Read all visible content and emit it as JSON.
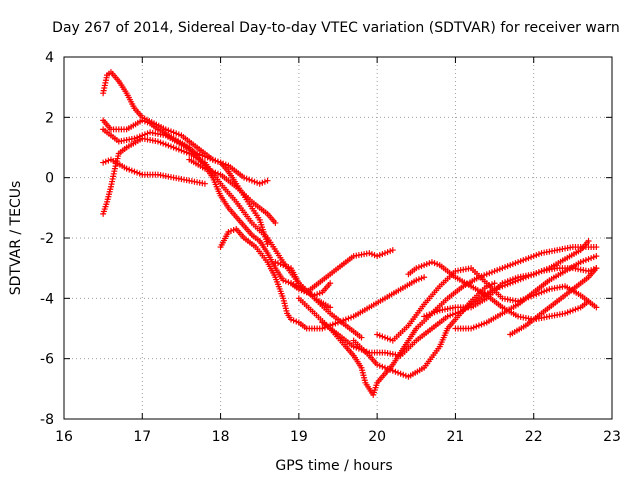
{
  "chart_data": {
    "type": "scatter",
    "title": "Day 267 of 2014, Sidereal Day-to-day VTEC variation (SDTVAR) for receiver warn",
    "xlabel": "GPS time / hours",
    "ylabel": "SDTVAR / TECUs",
    "xlim": [
      16,
      23
    ],
    "ylim": [
      -8,
      4
    ],
    "xticks": [
      16,
      17,
      18,
      19,
      20,
      21,
      22,
      23
    ],
    "yticks": [
      -8,
      -6,
      -4,
      -2,
      0,
      2,
      4
    ],
    "grid": true,
    "marker": "+",
    "color": "#ff0000",
    "series": [
      {
        "name": "trace-1",
        "points": [
          [
            16.5,
            2.8
          ],
          [
            16.55,
            3.4
          ],
          [
            16.6,
            3.5
          ],
          [
            16.7,
            3.2
          ],
          [
            16.8,
            2.8
          ],
          [
            16.9,
            2.3
          ],
          [
            17.0,
            2.0
          ],
          [
            17.15,
            1.8
          ],
          [
            17.3,
            1.6
          ],
          [
            17.5,
            1.4
          ],
          [
            17.7,
            1.0
          ],
          [
            17.9,
            0.6
          ],
          [
            18.0,
            0.5
          ],
          [
            18.1,
            0.2
          ],
          [
            18.2,
            -0.2
          ],
          [
            18.35,
            -0.8
          ],
          [
            18.5,
            -1.4
          ],
          [
            18.6,
            -2.2
          ]
        ]
      },
      {
        "name": "trace-2",
        "points": [
          [
            16.5,
            1.9
          ],
          [
            16.6,
            1.6
          ],
          [
            16.8,
            1.6
          ],
          [
            17.0,
            1.9
          ],
          [
            17.1,
            1.8
          ],
          [
            17.2,
            1.6
          ],
          [
            17.4,
            1.3
          ],
          [
            17.6,
            1.0
          ],
          [
            17.8,
            0.4
          ],
          [
            17.9,
            0.0
          ],
          [
            18.0,
            -0.6
          ],
          [
            18.1,
            -1.0
          ],
          [
            18.2,
            -1.3
          ],
          [
            18.3,
            -1.6
          ],
          [
            18.4,
            -1.9
          ],
          [
            18.5,
            -2.1
          ],
          [
            18.6,
            -2.5
          ],
          [
            18.7,
            -3.0
          ],
          [
            18.8,
            -3.4
          ],
          [
            18.9,
            -3.5
          ],
          [
            19.0,
            -3.6
          ],
          [
            19.1,
            -3.8
          ],
          [
            19.2,
            -3.9
          ],
          [
            19.3,
            -3.8
          ],
          [
            19.4,
            -3.5
          ]
        ]
      },
      {
        "name": "trace-3",
        "points": [
          [
            16.5,
            0.5
          ],
          [
            16.6,
            0.6
          ],
          [
            16.8,
            0.3
          ],
          [
            17.0,
            0.1
          ],
          [
            17.2,
            0.1
          ],
          [
            17.4,
            0.0
          ],
          [
            17.6,
            -0.1
          ],
          [
            17.8,
            -0.2
          ]
        ]
      },
      {
        "name": "trace-4",
        "points": [
          [
            16.5,
            1.6
          ],
          [
            16.7,
            1.2
          ],
          [
            16.9,
            1.3
          ],
          [
            17.1,
            1.5
          ],
          [
            17.3,
            1.4
          ],
          [
            17.5,
            1.1
          ],
          [
            17.7,
            0.8
          ],
          [
            17.9,
            0.6
          ],
          [
            18.1,
            0.4
          ],
          [
            18.3,
            0.0
          ],
          [
            18.5,
            -0.2
          ],
          [
            18.6,
            -0.1
          ]
        ]
      },
      {
        "name": "trace-5",
        "points": [
          [
            16.5,
            -1.2
          ],
          [
            16.55,
            -0.8
          ],
          [
            16.6,
            -0.3
          ],
          [
            16.65,
            0.3
          ],
          [
            16.7,
            0.8
          ],
          [
            16.8,
            1.0
          ],
          [
            17.0,
            1.3
          ],
          [
            17.2,
            1.2
          ],
          [
            17.4,
            1.0
          ],
          [
            17.6,
            0.8
          ],
          [
            17.8,
            0.5
          ],
          [
            18.0,
            -0.2
          ],
          [
            18.2,
            -0.8
          ],
          [
            18.4,
            -1.5
          ],
          [
            18.6,
            -2.0
          ],
          [
            18.8,
            -2.8
          ],
          [
            19.0,
            -3.5
          ],
          [
            19.2,
            -4.0
          ],
          [
            19.4,
            -4.3
          ]
        ]
      },
      {
        "name": "trace-6",
        "points": [
          [
            18.0,
            -2.3
          ],
          [
            18.1,
            -1.8
          ],
          [
            18.2,
            -1.7
          ],
          [
            18.3,
            -2.0
          ],
          [
            18.45,
            -2.3
          ],
          [
            18.6,
            -2.8
          ],
          [
            18.7,
            -3.3
          ],
          [
            18.8,
            -4.0
          ],
          [
            18.85,
            -4.5
          ],
          [
            18.9,
            -4.7
          ],
          [
            19.0,
            -4.8
          ],
          [
            19.1,
            -5.0
          ],
          [
            19.3,
            -5.0
          ],
          [
            19.5,
            -4.8
          ],
          [
            19.7,
            -4.6
          ],
          [
            19.9,
            -4.3
          ],
          [
            20.1,
            -4.0
          ],
          [
            20.3,
            -3.7
          ],
          [
            20.5,
            -3.4
          ],
          [
            20.6,
            -3.3
          ]
        ]
      },
      {
        "name": "trace-7",
        "points": [
          [
            18.7,
            -2.8
          ],
          [
            18.9,
            -3.0
          ],
          [
            19.0,
            -3.5
          ],
          [
            19.2,
            -4.0
          ],
          [
            19.4,
            -4.5
          ],
          [
            19.6,
            -4.9
          ],
          [
            19.7,
            -5.1
          ],
          [
            19.8,
            -5.3
          ]
        ]
      },
      {
        "name": "trace-8",
        "points": [
          [
            18.9,
            -3.5
          ],
          [
            19.0,
            -3.7
          ],
          [
            19.1,
            -3.8
          ],
          [
            19.3,
            -3.4
          ],
          [
            19.5,
            -3.0
          ],
          [
            19.7,
            -2.6
          ],
          [
            19.9,
            -2.5
          ],
          [
            20.0,
            -2.6
          ],
          [
            20.1,
            -2.5
          ],
          [
            20.2,
            -2.4
          ]
        ]
      },
      {
        "name": "trace-9",
        "points": [
          [
            19.0,
            -4.0
          ],
          [
            19.2,
            -4.5
          ],
          [
            19.4,
            -5.0
          ],
          [
            19.6,
            -5.6
          ],
          [
            19.7,
            -5.9
          ],
          [
            19.8,
            -6.3
          ],
          [
            19.85,
            -6.8
          ],
          [
            19.9,
            -7.0
          ],
          [
            19.95,
            -7.2
          ],
          [
            20.0,
            -6.8
          ],
          [
            20.1,
            -6.5
          ],
          [
            20.2,
            -6.2
          ],
          [
            20.3,
            -5.8
          ],
          [
            20.4,
            -5.4
          ],
          [
            20.5,
            -5.0
          ],
          [
            20.7,
            -4.5
          ],
          [
            20.9,
            -4.0
          ],
          [
            21.1,
            -3.6
          ],
          [
            21.3,
            -3.3
          ],
          [
            21.5,
            -3.1
          ],
          [
            21.7,
            -2.9
          ],
          [
            21.9,
            -2.7
          ],
          [
            22.1,
            -2.5
          ],
          [
            22.3,
            -2.4
          ],
          [
            22.5,
            -2.3
          ],
          [
            22.7,
            -2.3
          ],
          [
            22.8,
            -2.3
          ]
        ]
      },
      {
        "name": "trace-10",
        "points": [
          [
            19.3,
            -4.8
          ],
          [
            19.5,
            -5.2
          ],
          [
            19.7,
            -5.6
          ],
          [
            19.9,
            -5.8
          ],
          [
            20.1,
            -5.8
          ],
          [
            20.3,
            -5.9
          ],
          [
            20.5,
            -5.4
          ],
          [
            20.7,
            -5.0
          ],
          [
            20.9,
            -4.6
          ],
          [
            21.1,
            -4.4
          ],
          [
            21.3,
            -4.0
          ],
          [
            21.5,
            -3.7
          ],
          [
            21.7,
            -3.5
          ],
          [
            21.9,
            -3.3
          ],
          [
            22.1,
            -3.1
          ],
          [
            22.3,
            -3.0
          ],
          [
            22.5,
            -3.0
          ],
          [
            22.7,
            -3.1
          ],
          [
            22.8,
            -3.0
          ]
        ]
      },
      {
        "name": "trace-11",
        "points": [
          [
            19.7,
            -5.4
          ],
          [
            19.9,
            -5.9
          ],
          [
            20.0,
            -6.2
          ],
          [
            20.2,
            -6.4
          ],
          [
            20.4,
            -6.6
          ],
          [
            20.6,
            -6.3
          ],
          [
            20.8,
            -5.6
          ],
          [
            20.9,
            -5.0
          ],
          [
            21.0,
            -4.7
          ],
          [
            21.2,
            -4.1
          ],
          [
            21.4,
            -3.6
          ],
          [
            21.5,
            -3.5
          ]
        ]
      },
      {
        "name": "trace-12",
        "points": [
          [
            20.0,
            -5.2
          ],
          [
            20.2,
            -5.4
          ],
          [
            20.4,
            -4.9
          ],
          [
            20.6,
            -4.2
          ],
          [
            20.8,
            -3.6
          ],
          [
            21.0,
            -3.1
          ],
          [
            21.2,
            -3.0
          ],
          [
            21.4,
            -3.5
          ],
          [
            21.6,
            -4.0
          ],
          [
            21.8,
            -4.1
          ],
          [
            22.0,
            -3.9
          ],
          [
            22.2,
            -3.7
          ],
          [
            22.4,
            -3.6
          ],
          [
            22.6,
            -3.9
          ],
          [
            22.8,
            -4.3
          ]
        ]
      },
      {
        "name": "trace-13",
        "points": [
          [
            20.4,
            -3.2
          ],
          [
            20.5,
            -3.0
          ],
          [
            20.6,
            -2.9
          ],
          [
            20.7,
            -2.8
          ],
          [
            20.8,
            -2.9
          ],
          [
            21.0,
            -3.3
          ],
          [
            21.2,
            -3.6
          ],
          [
            21.4,
            -3.9
          ],
          [
            21.6,
            -4.3
          ],
          [
            21.8,
            -4.6
          ],
          [
            22.0,
            -4.7
          ],
          [
            22.2,
            -4.6
          ],
          [
            22.4,
            -4.5
          ],
          [
            22.6,
            -4.3
          ],
          [
            22.7,
            -4.1
          ]
        ]
      },
      {
        "name": "trace-14",
        "points": [
          [
            20.6,
            -4.6
          ],
          [
            20.8,
            -4.4
          ],
          [
            21.0,
            -4.3
          ],
          [
            21.2,
            -4.3
          ],
          [
            21.4,
            -4.0
          ],
          [
            21.6,
            -3.5
          ],
          [
            21.8,
            -3.3
          ],
          [
            22.0,
            -3.2
          ],
          [
            22.2,
            -3.0
          ],
          [
            22.4,
            -2.7
          ],
          [
            22.6,
            -2.4
          ],
          [
            22.7,
            -2.1
          ]
        ]
      },
      {
        "name": "trace-15",
        "points": [
          [
            21.0,
            -5.0
          ],
          [
            21.2,
            -5.0
          ],
          [
            21.4,
            -4.8
          ],
          [
            21.6,
            -4.5
          ],
          [
            21.8,
            -4.2
          ],
          [
            22.0,
            -3.8
          ],
          [
            22.2,
            -3.4
          ],
          [
            22.4,
            -3.1
          ],
          [
            22.6,
            -2.8
          ],
          [
            22.8,
            -2.6
          ]
        ]
      },
      {
        "name": "trace-16",
        "points": [
          [
            21.7,
            -5.2
          ],
          [
            21.9,
            -4.9
          ],
          [
            22.1,
            -4.5
          ],
          [
            22.3,
            -4.1
          ],
          [
            22.5,
            -3.7
          ],
          [
            22.7,
            -3.3
          ],
          [
            22.8,
            -3.0
          ]
        ]
      },
      {
        "name": "trace-17",
        "points": [
          [
            17.6,
            0.6
          ],
          [
            17.8,
            0.3
          ],
          [
            18.0,
            0.1
          ],
          [
            18.2,
            -0.3
          ],
          [
            18.4,
            -0.8
          ],
          [
            18.6,
            -1.2
          ],
          [
            18.7,
            -1.5
          ]
        ]
      }
    ]
  }
}
